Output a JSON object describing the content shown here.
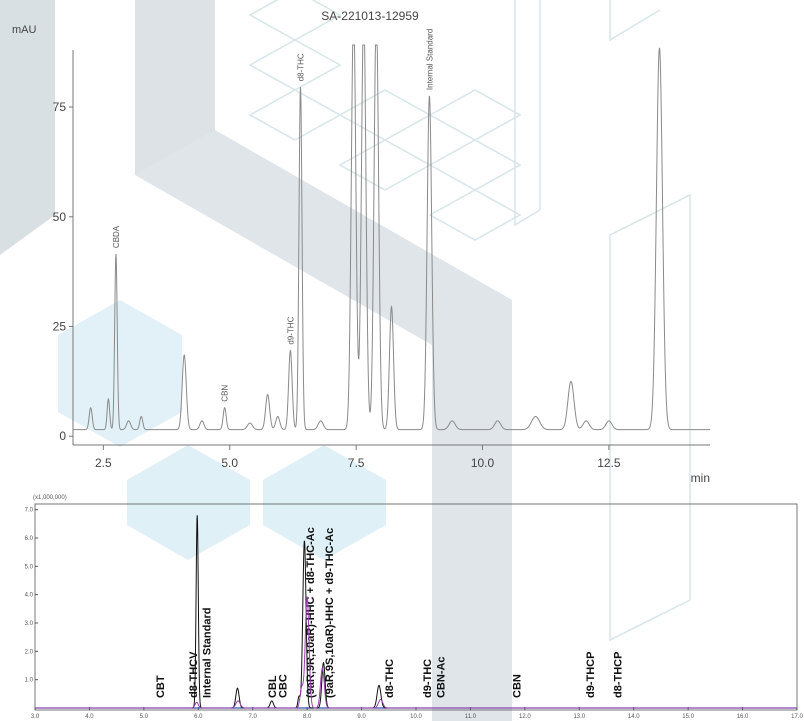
{
  "colors": {
    "top_trace": "#8a8a8a",
    "bottom_trace_black": "#111111",
    "bottom_trace_purple": "#9b3fb0",
    "bottom_baseline": "#3a4fb0",
    "deco_dark": "#b9c6cc",
    "deco_light": "#cfe8f2"
  },
  "chart_data": [
    {
      "type": "line",
      "title": "SA-221013-12959",
      "ylabel": "mAU",
      "xlabel": "min",
      "xlim": [
        1.9,
        14.5
      ],
      "ylim": [
        -2,
        88
      ],
      "x_ticks": [
        2.5,
        5.0,
        7.5,
        10.0,
        12.5
      ],
      "x_tick_labels": [
        "2.5",
        "5.0",
        "7.5",
        "10.0",
        "12.5"
      ],
      "y_ticks": [
        0,
        25,
        50,
        75
      ],
      "y_tick_labels": [
        "0",
        "25",
        "50",
        "75"
      ],
      "grid": false,
      "baseline": 1.5,
      "peaks": [
        {
          "rt": 2.25,
          "height": 5,
          "width": 0.03
        },
        {
          "rt": 2.6,
          "height": 7,
          "width": 0.025
        },
        {
          "rt": 2.75,
          "height": 40,
          "width": 0.025,
          "label": "CBDA"
        },
        {
          "rt": 3.0,
          "height": 2,
          "width": 0.04
        },
        {
          "rt": 3.25,
          "height": 3,
          "width": 0.03
        },
        {
          "rt": 4.1,
          "height": 17,
          "width": 0.04
        },
        {
          "rt": 4.45,
          "height": 2,
          "width": 0.04
        },
        {
          "rt": 4.9,
          "height": 5,
          "width": 0.03,
          "label": "CBN"
        },
        {
          "rt": 5.4,
          "height": 1.5,
          "width": 0.05
        },
        {
          "rt": 5.75,
          "height": 8,
          "width": 0.04
        },
        {
          "rt": 5.95,
          "height": 3,
          "width": 0.04
        },
        {
          "rt": 6.2,
          "height": 18,
          "width": 0.035,
          "label": "d9-THC"
        },
        {
          "rt": 6.4,
          "height": 78,
          "width": 0.03,
          "label": "d8-THC"
        },
        {
          "rt": 6.8,
          "height": 2,
          "width": 0.05
        },
        {
          "rt": 7.45,
          "height": 95,
          "width": 0.045
        },
        {
          "rt": 7.65,
          "height": 95,
          "width": 0.045
        },
        {
          "rt": 7.9,
          "height": 95,
          "width": 0.045
        },
        {
          "rt": 8.2,
          "height": 28,
          "width": 0.04
        },
        {
          "rt": 8.95,
          "height": 76,
          "width": 0.045,
          "label": "Internal Standard"
        },
        {
          "rt": 9.4,
          "height": 2,
          "width": 0.06
        },
        {
          "rt": 10.3,
          "height": 2,
          "width": 0.06
        },
        {
          "rt": 11.05,
          "height": 3,
          "width": 0.08
        },
        {
          "rt": 11.75,
          "height": 11,
          "width": 0.06
        },
        {
          "rt": 12.05,
          "height": 2,
          "width": 0.06
        },
        {
          "rt": 12.5,
          "height": 2,
          "width": 0.06
        },
        {
          "rt": 13.5,
          "height": 87,
          "width": 0.06
        }
      ]
    },
    {
      "type": "line",
      "multiplier_label": "(x1,000,000)",
      "xlim": [
        3.0,
        17.0
      ],
      "ylim": [
        0,
        7.2
      ],
      "x_ticks": [
        3.0,
        4.0,
        5.0,
        6.0,
        7.0,
        8.0,
        9.0,
        10.0,
        11.0,
        12.0,
        13.0,
        14.0,
        15.0,
        16.0,
        17.0
      ],
      "x_tick_labels": [
        "3.0",
        "4.0",
        "5.0",
        "6.0",
        "7.0",
        "8.0",
        "9.0",
        "10.0",
        "11.0",
        "12.0",
        "13.0",
        "14.0",
        "15.0",
        "16.0",
        "17.0"
      ],
      "y_ticks": [
        1,
        2,
        3,
        4,
        5,
        6,
        7
      ],
      "y_tick_labels": [
        "1.0",
        "2.0",
        "3.0",
        "4.0",
        "5.0",
        "6.0",
        "7.0"
      ],
      "grid": false,
      "series": [
        {
          "color_key": "bottom_trace_black",
          "peaks": [
            {
              "rt": 5.98,
              "height": 6.8,
              "width": 0.02
            },
            {
              "rt": 6.72,
              "height": 0.7,
              "width": 0.03
            },
            {
              "rt": 7.35,
              "height": 0.25,
              "width": 0.03
            },
            {
              "rt": 7.85,
              "height": 0.4,
              "width": 0.02
            },
            {
              "rt": 7.95,
              "height": 5.9,
              "width": 0.03
            },
            {
              "rt": 8.3,
              "height": 1.6,
              "width": 0.03
            },
            {
              "rt": 9.32,
              "height": 0.8,
              "width": 0.035
            }
          ]
        },
        {
          "color_key": "bottom_trace_purple",
          "peaks": [
            {
              "rt": 5.97,
              "height": 0.2,
              "width": 0.03
            },
            {
              "rt": 6.73,
              "height": 0.25,
              "width": 0.04
            },
            {
              "rt": 7.9,
              "height": 0.7,
              "width": 0.03
            },
            {
              "rt": 8.0,
              "height": 3.9,
              "width": 0.035
            },
            {
              "rt": 8.28,
              "height": 1.4,
              "width": 0.035
            },
            {
              "rt": 9.35,
              "height": 0.3,
              "width": 0.04
            }
          ]
        }
      ],
      "labels": [
        {
          "rt": 5.3,
          "text": "CBT"
        },
        {
          "rt": 5.9,
          "text": "d8-THCV"
        },
        {
          "rt": 6.15,
          "text": "Internal Standard"
        },
        {
          "rt": 7.35,
          "text": "CBL"
        },
        {
          "rt": 7.55,
          "text": "CBC"
        },
        {
          "rt": 8.05,
          "text": "(9aR,9R,10aR)-HHC + d8-THC-Ac"
        },
        {
          "rt": 8.4,
          "text": "(9aR,9S,10aR)-HHC + d9-THC-Ac"
        },
        {
          "rt": 9.5,
          "text": "d8-THC"
        },
        {
          "rt": 10.2,
          "text": "d9-THC"
        },
        {
          "rt": 10.45,
          "text": "CBN-Ac"
        },
        {
          "rt": 11.85,
          "text": "CBN"
        },
        {
          "rt": 13.2,
          "text": "d9-THCP"
        },
        {
          "rt": 13.7,
          "text": "d8-THCP"
        }
      ]
    }
  ]
}
